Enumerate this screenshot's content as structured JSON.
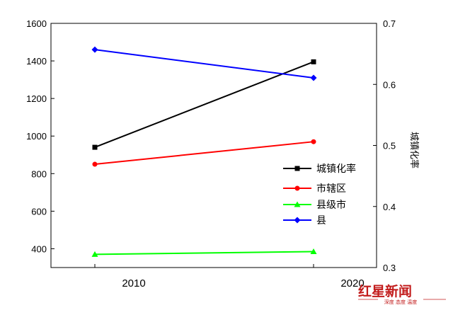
{
  "chart_data": {
    "type": "line",
    "categories": [
      "2010",
      "2020"
    ],
    "left_axis": {
      "ylim": [
        300,
        1600
      ],
      "ticks": [
        400,
        600,
        800,
        1000,
        1200,
        1400,
        1600
      ]
    },
    "right_axis": {
      "label": "城镇化率",
      "ylim": [
        0.3,
        0.7
      ],
      "ticks": [
        0.3,
        0.4,
        0.5,
        0.6,
        0.7
      ]
    },
    "series": [
      {
        "name": "城镇化率",
        "axis": "right",
        "values": [
          0.497,
          0.637
        ],
        "color": "#000000",
        "marker": "square"
      },
      {
        "name": "市辖区",
        "axis": "left",
        "values": [
          850,
          970
        ],
        "color": "#ff0000",
        "marker": "circle"
      },
      {
        "name": "县级市",
        "axis": "left",
        "values": [
          370,
          385
        ],
        "color": "#00ff00",
        "marker": "triangle"
      },
      {
        "name": "县",
        "axis": "left",
        "values": [
          1460,
          1310
        ],
        "color": "#0000ff",
        "marker": "diamond"
      }
    ],
    "legend": "center-right",
    "grid": false
  },
  "watermark": {
    "main": "红星新闻",
    "sub": "深度 态度 温度"
  }
}
